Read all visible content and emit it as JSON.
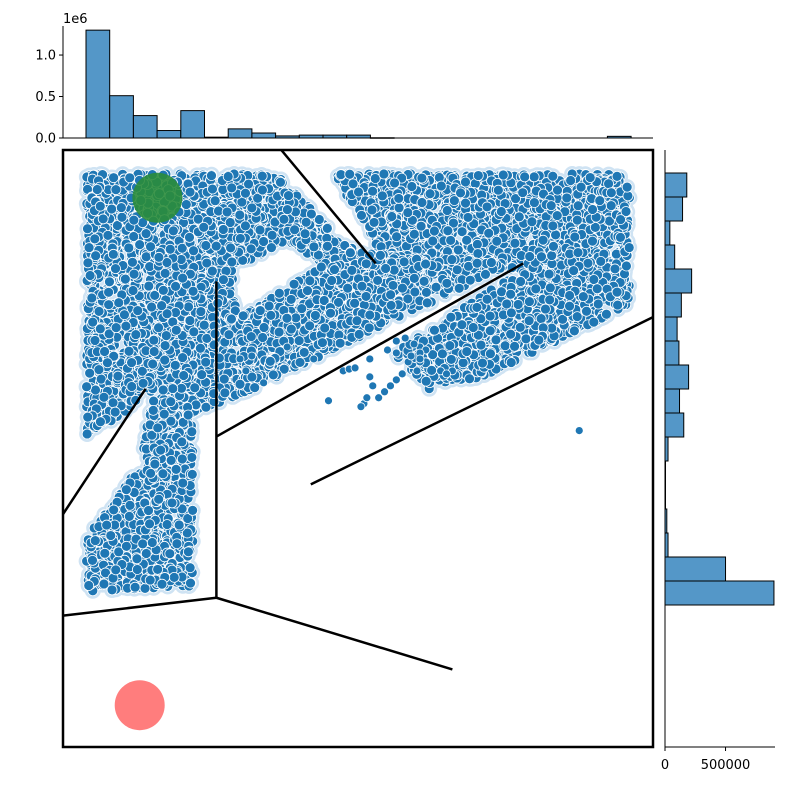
{
  "chart_data": [
    {
      "type": "bar",
      "role": "top-marginal-histogram",
      "orientation": "vertical",
      "exponent_label": "1e6",
      "y_ticks": [
        {
          "value": 0.0,
          "label": "0.0"
        },
        {
          "value": 0.5,
          "label": "0.5"
        },
        {
          "value": 1.0,
          "label": "1.0"
        }
      ],
      "ylim": [
        0,
        1.35
      ],
      "bins": [
        {
          "bin": 1,
          "value": 1.3
        },
        {
          "bin": 2,
          "value": 0.51
        },
        {
          "bin": 3,
          "value": 0.27
        },
        {
          "bin": 4,
          "value": 0.09
        },
        {
          "bin": 5,
          "value": 0.33
        },
        {
          "bin": 6,
          "value": 0.01
        },
        {
          "bin": 7,
          "value": 0.11
        },
        {
          "bin": 8,
          "value": 0.06
        },
        {
          "bin": 9,
          "value": 0.025
        },
        {
          "bin": 10,
          "value": 0.035
        },
        {
          "bin": 11,
          "value": 0.035
        },
        {
          "bin": 12,
          "value": 0.035
        },
        {
          "bin": 13,
          "value": 0.003
        },
        {
          "bin": 23,
          "value": 0.02
        }
      ],
      "n_bins": 23,
      "bar_color": "#5497c8",
      "edge_color": "#000000"
    },
    {
      "type": "bar",
      "role": "right-marginal-histogram",
      "orientation": "horizontal",
      "x_ticks": [
        {
          "value": 0,
          "label": "0"
        },
        {
          "value": 500000,
          "label": "500000"
        }
      ],
      "xlim": [
        0,
        950000
      ],
      "bins": [
        {
          "bin": 1,
          "value": 180000
        },
        {
          "bin": 2,
          "value": 145000
        },
        {
          "bin": 3,
          "value": 40000
        },
        {
          "bin": 4,
          "value": 80000
        },
        {
          "bin": 5,
          "value": 220000
        },
        {
          "bin": 6,
          "value": 135000
        },
        {
          "bin": 7,
          "value": 100000
        },
        {
          "bin": 8,
          "value": 115000
        },
        {
          "bin": 9,
          "value": 195000
        },
        {
          "bin": 10,
          "value": 120000
        },
        {
          "bin": 11,
          "value": 155000
        },
        {
          "bin": 12,
          "value": 25000
        },
        {
          "bin": 13,
          "value": 4000
        },
        {
          "bin": 14,
          "value": 3000
        },
        {
          "bin": 15,
          "value": 15000
        },
        {
          "bin": 16,
          "value": 25000
        },
        {
          "bin": 17,
          "value": 500000
        },
        {
          "bin": 18,
          "value": 900000
        }
      ],
      "n_bins": 24,
      "bar_color": "#5497c8",
      "edge_color": "#000000"
    },
    {
      "type": "scatter",
      "role": "joint-scatter-maze",
      "xlim": [
        0,
        100
      ],
      "ylim": [
        0,
        100
      ],
      "x_ticks": [],
      "y_ticks": [],
      "point_color": "#1f77b4",
      "point_edge_color": "#ffffff",
      "dense_regions": [
        {
          "name": "upper-left-corridor",
          "polygon": [
            [
              4,
              96
            ],
            [
              36,
              96
            ],
            [
              56,
              77
            ],
            [
              54,
              74
            ],
            [
              38,
              85
            ],
            [
              29,
              80
            ],
            [
              30,
              59
            ],
            [
              22,
              56
            ],
            [
              22,
              27
            ],
            [
              4,
              26
            ],
            [
              4,
              35
            ],
            [
              13,
              47
            ],
            [
              15,
              59
            ],
            [
              4,
              52
            ]
          ]
        },
        {
          "name": "upper-right-corridor",
          "polygon": [
            [
              46,
              96
            ],
            [
              96,
              96
            ],
            [
              96,
              74
            ],
            [
              71,
              62
            ],
            [
              62,
              60
            ],
            [
              56,
              66
            ],
            [
              78,
              80
            ],
            [
              55,
              81
            ],
            [
              53,
              84
            ]
          ]
        },
        {
          "name": "middle-wedge",
          "polygon": [
            [
              30,
              59
            ],
            [
              76,
              81
            ],
            [
              48,
              83
            ],
            [
              30,
              72
            ]
          ]
        }
      ],
      "sparse_points": [
        [
          30,
          65
        ],
        [
          32,
          65.5
        ],
        [
          31,
          63
        ],
        [
          34,
          61
        ],
        [
          38,
          67
        ],
        [
          42.5,
          65
        ],
        [
          45,
          58
        ],
        [
          47.5,
          63
        ],
        [
          48.5,
          63.3
        ],
        [
          49.5,
          63.5
        ],
        [
          52,
          62
        ],
        [
          51,
          57.5
        ],
        [
          51.5,
          58.5
        ],
        [
          50.5,
          57
        ],
        [
          53.5,
          58.5
        ],
        [
          54.5,
          59.5
        ],
        [
          55.5,
          60.5
        ],
        [
          56.5,
          61.5
        ],
        [
          57.5,
          62.5
        ],
        [
          52.5,
          60.5
        ],
        [
          52,
          65
        ],
        [
          55,
          66.5
        ],
        [
          56.5,
          66
        ],
        [
          58.5,
          64.5
        ],
        [
          60,
          63
        ],
        [
          60.5,
          64.5
        ],
        [
          59,
          65.5
        ],
        [
          60.5,
          67
        ],
        [
          61.5,
          66.5
        ],
        [
          56.5,
          68
        ],
        [
          58,
          68.5
        ],
        [
          59.5,
          67.5
        ],
        [
          60.5,
          66
        ],
        [
          60.5,
          65
        ],
        [
          64,
          63
        ],
        [
          66,
          63
        ],
        [
          65,
          62.5
        ],
        [
          87.5,
          53
        ]
      ],
      "goal_marker": {
        "x": 16,
        "y": 92,
        "color": "#2a8c3a"
      },
      "start_marker": {
        "x": 13,
        "y": 7,
        "color": "#ff6f6f"
      },
      "walls": [
        [
          [
            37,
            100
          ],
          [
            53,
            81
          ]
        ],
        [
          [
            26,
            78
          ],
          [
            26,
            25
          ]
        ],
        [
          [
            26,
            52
          ],
          [
            78,
            81
          ]
        ],
        [
          [
            14,
            60
          ],
          [
            0,
            39
          ]
        ],
        [
          [
            0,
            22
          ],
          [
            26,
            25
          ]
        ],
        [
          [
            26,
            25
          ],
          [
            66,
            13
          ]
        ],
        [
          [
            42,
            44
          ],
          [
            100,
            72
          ]
        ]
      ],
      "wall_color": "#000000"
    }
  ]
}
